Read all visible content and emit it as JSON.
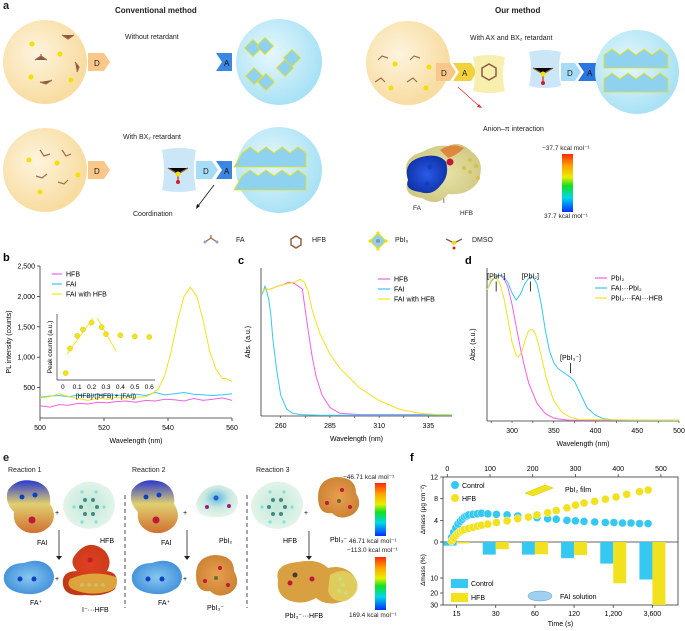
{
  "panel_a": {
    "label": "a",
    "conventional_title": "Conventional method",
    "our_title": "Our method",
    "without_retardant": "Without retardant",
    "with_bx2": "With BX₂ retardant",
    "with_ax_bx2": "With AX and BX₂ retardant",
    "coordination": "Coordination",
    "anion_pi": "Anion–π interaction",
    "donor": "D",
    "acceptor": "A",
    "esp_labels": {
      "fa": "FA",
      "i": "I",
      "hfb": "HFB"
    },
    "colorbar": {
      "top": "−37.7 kcal mol⁻¹",
      "bottom": "37.7 kcal mol⁻¹"
    },
    "legend": [
      {
        "icon": "fa-molecule-icon",
        "label": "FA"
      },
      {
        "icon": "hfb-molecule-icon",
        "label": "HFB"
      },
      {
        "icon": "pbi6-octahedron-icon",
        "label": "PbI₆"
      },
      {
        "icon": "dmso-molecule-icon",
        "label": "DMSO"
      }
    ],
    "colors": {
      "precursor_sphere": "#fbe3b0",
      "perovskite_sphere": "#bfe9f7",
      "donor": "#f9c27a",
      "acceptor_blue": "#3a86e0",
      "acceptor_yellow": "#f2d23c"
    }
  },
  "panel_e": {
    "label": "e",
    "reactions": [
      {
        "title": "Reaction 1",
        "reactant1": "FAI",
        "reactant2": "HFB",
        "product1": "FA⁺",
        "product2": "I⁻···HFB"
      },
      {
        "title": "Reaction 2",
        "reactant1": "FAI",
        "reactant2": "PbI₂",
        "product1": "FA⁺",
        "product2": "PbI₃⁻"
      },
      {
        "title": "Reaction 3",
        "reactant1": "HFB",
        "reactant2": "PbI₃⁻",
        "product1": "PbI₃⁻···HFB"
      }
    ],
    "plus": "+",
    "colorbar1": {
      "top": "−46.71 kcal mol⁻¹",
      "bottom": "46.71 kcal mol⁻¹"
    },
    "colorbar2": {
      "top": "−113.0 kcal mol⁻¹",
      "bottom": "169.4 kcal mol⁻¹"
    }
  },
  "chart_data": [
    {
      "id": "b",
      "type": "line",
      "label": "b",
      "xlabel": "Wavelength (nm)",
      "ylabel": "PL intensity (counts)",
      "xlim": [
        500,
        560
      ],
      "ylim": [
        0,
        2500
      ],
      "xticks": [
        500,
        520,
        540,
        560
      ],
      "yticks": [
        500,
        1000,
        1500,
        2000,
        2500
      ],
      "ytick_labels": [
        "500",
        "1,000",
        "1,500",
        "2,000",
        "2,500"
      ],
      "legend_position": "top-left",
      "series": [
        {
          "name": "HFB",
          "color": "#f062e6",
          "x": [
            500,
            503,
            506,
            509,
            512,
            515,
            518,
            521,
            524,
            527,
            530,
            533,
            536,
            539,
            542,
            545,
            548,
            551,
            554,
            557,
            560
          ],
          "y": [
            200,
            180,
            220,
            210,
            240,
            230,
            260,
            250,
            270,
            280,
            260,
            290,
            280,
            310,
            300,
            280,
            320,
            290,
            310,
            330,
            290
          ]
        },
        {
          "name": "FAI",
          "color": "#35c8f0",
          "x": [
            500,
            503,
            506,
            509,
            512,
            515,
            518,
            521,
            524,
            527,
            530,
            533,
            536,
            539,
            542,
            545,
            548,
            551,
            554,
            557,
            560
          ],
          "y": [
            340,
            360,
            370,
            350,
            380,
            360,
            390,
            370,
            380,
            360,
            390,
            370,
            420,
            380,
            400,
            420,
            390,
            380,
            370,
            380,
            400
          ]
        },
        {
          "name": "FAI with HFB",
          "color": "#f2e21e",
          "x": [
            500,
            503,
            506,
            509,
            512,
            515,
            518,
            521,
            524,
            527,
            530,
            533,
            535,
            537,
            539,
            541,
            543,
            545,
            547,
            549,
            551,
            553,
            555,
            557,
            558,
            560
          ],
          "y": [
            330,
            350,
            400,
            350,
            320,
            290,
            330,
            310,
            340,
            320,
            340,
            350,
            400,
            480,
            700,
            1100,
            1600,
            2000,
            2150,
            2000,
            1600,
            1100,
            800,
            650,
            650,
            600
          ]
        }
      ],
      "inset": {
        "type": "scatter",
        "xlabel": "[HFB]/([HFB] + [FAI])",
        "ylabel": "Peak counts (a.u.)",
        "xlim": [
          0,
          0.6
        ],
        "xticks": [
          0,
          0.1,
          0.2,
          0.3,
          0.4,
          0.5,
          0.6
        ],
        "x": [
          0.02,
          0.05,
          0.1,
          0.14,
          0.2,
          0.27,
          0.3,
          0.4,
          0.5,
          0.6
        ],
        "y": [
          0.12,
          0.55,
          0.77,
          0.88,
          1.0,
          0.92,
          0.8,
          0.78,
          0.76,
          0.75
        ],
        "fit_lines": [
          {
            "x": [
              0.03,
              0.21
            ],
            "y": [
              0.45,
              1.08
            ]
          },
          {
            "x": [
              0.24,
              0.37
            ],
            "y": [
              1.08,
              0.5
            ]
          }
        ],
        "color": "#f2e21e"
      }
    },
    {
      "id": "c",
      "type": "line",
      "label": "c",
      "xlabel": "Wavelength (nm)",
      "ylabel": "Abs. (a.u.)",
      "xlim": [
        250,
        347
      ],
      "ylim": [
        0,
        1.05
      ],
      "xticks": [
        260,
        285,
        310,
        335
      ],
      "legend_position": "top-right",
      "series": [
        {
          "name": "HFB",
          "color": "#f062e6",
          "x": [
            250,
            252,
            255,
            258,
            261,
            264,
            267,
            269,
            271,
            272,
            274,
            276,
            278,
            281,
            285,
            290,
            300,
            347
          ],
          "y": [
            0.86,
            0.9,
            0.9,
            0.92,
            0.93,
            0.95,
            0.94,
            0.92,
            0.9,
            0.8,
            0.6,
            0.42,
            0.28,
            0.15,
            0.06,
            0.02,
            0.01,
            0.01
          ]
        },
        {
          "name": "FAI",
          "color": "#35c8f0",
          "x": [
            250,
            251,
            252,
            253,
            254,
            255,
            256,
            258,
            260,
            263,
            266,
            270,
            280,
            347
          ],
          "y": [
            0.85,
            0.88,
            0.92,
            0.88,
            0.82,
            0.72,
            0.55,
            0.32,
            0.15,
            0.05,
            0.02,
            0.01,
            0.005,
            0.005
          ]
        },
        {
          "name": "FAI with HFB",
          "color": "#f2e21e",
          "x": [
            250,
            252,
            255,
            258,
            261,
            264,
            267,
            270,
            272,
            274,
            276,
            280,
            285,
            290,
            300,
            310,
            320,
            330,
            340,
            347
          ],
          "y": [
            0.87,
            0.9,
            0.9,
            0.92,
            0.93,
            0.94,
            0.95,
            0.97,
            0.95,
            0.88,
            0.75,
            0.58,
            0.44,
            0.34,
            0.2,
            0.11,
            0.05,
            0.02,
            0.01,
            0.01
          ]
        }
      ]
    },
    {
      "id": "d",
      "type": "line",
      "label": "d",
      "xlabel": "Wavelength (nm)",
      "ylabel": "Abs. (a.u.)",
      "xlim": [
        270,
        500
      ],
      "ylim": [
        0,
        1.05
      ],
      "xticks": [
        300,
        350,
        400,
        450,
        500
      ],
      "legend_position": "top-right",
      "annotations": [
        {
          "text": "[PbI⁺]",
          "x": 281,
          "y": 0.93
        },
        {
          "text": "[PbI₂]",
          "x": 322,
          "y": 0.93
        },
        {
          "text": "[PbI₃⁻]",
          "x": 370,
          "y": 0.37
        }
      ],
      "series": [
        {
          "name": "PbI₂",
          "color": "#f062e6",
          "x": [
            270,
            275,
            280,
            285,
            290,
            295,
            300,
            305,
            310,
            315,
            320,
            330,
            340,
            350,
            360,
            370,
            500
          ],
          "y": [
            0.9,
            0.96,
            0.99,
            1.0,
            0.98,
            0.92,
            0.8,
            0.65,
            0.5,
            0.37,
            0.26,
            0.12,
            0.05,
            0.02,
            0.01,
            0.005,
            0.005
          ]
        },
        {
          "name": "FAI···PbI₂",
          "color": "#35c8f0",
          "x": [
            270,
            275,
            280,
            285,
            290,
            295,
            300,
            305,
            310,
            315,
            320,
            325,
            330,
            335,
            340,
            345,
            350,
            355,
            360,
            365,
            370,
            375,
            380,
            385,
            390,
            400,
            410,
            420,
            440,
            500
          ],
          "y": [
            0.9,
            0.96,
            0.99,
            1.0,
            0.99,
            0.95,
            0.88,
            0.83,
            0.87,
            0.94,
            0.98,
            0.99,
            0.94,
            0.8,
            0.62,
            0.48,
            0.4,
            0.36,
            0.34,
            0.32,
            0.3,
            0.27,
            0.21,
            0.15,
            0.09,
            0.04,
            0.015,
            0.008,
            0.004,
            0.003
          ]
        },
        {
          "name": "PbI₂···FAI···HFB",
          "color": "#f2e21e",
          "x": [
            270,
            275,
            280,
            285,
            290,
            295,
            300,
            305,
            308,
            312,
            316,
            320,
            324,
            328,
            332,
            336,
            340,
            345,
            350,
            360,
            370,
            380,
            500
          ],
          "y": [
            0.9,
            0.97,
            0.99,
            0.95,
            0.85,
            0.7,
            0.54,
            0.45,
            0.44,
            0.48,
            0.56,
            0.62,
            0.63,
            0.6,
            0.52,
            0.42,
            0.32,
            0.22,
            0.14,
            0.06,
            0.025,
            0.01,
            0.005
          ]
        }
      ]
    },
    {
      "id": "f",
      "type": "scatter+bar",
      "label": "f",
      "top": {
        "xlabel_top_ticks": [
          0,
          100,
          200,
          300,
          400,
          500
        ],
        "xlim": [
          -10,
          540
        ],
        "ylabel": "Δmass (μg cm⁻²)",
        "ylim": [
          0,
          12
        ],
        "yticks": [
          0,
          4,
          8,
          12
        ],
        "annotation": "PbI₂ film",
        "series": [
          {
            "name": "Control",
            "color": "#35c8f0",
            "x": [
              10,
              15,
              20,
              25,
              30,
              35,
              40,
              45,
              50,
              60,
              70,
              80,
              95,
              115,
              140,
              165,
              190,
              210,
              235,
              255,
              280,
              300,
              320,
              345,
              370,
              390,
              410,
              430,
              450,
              470
            ],
            "y": [
              0.8,
              1.8,
              2.6,
              3.3,
              3.8,
              4.2,
              4.6,
              4.8,
              5.0,
              5.1,
              5.2,
              5.3,
              5.2,
              5.1,
              5.0,
              4.8,
              4.6,
              4.5,
              4.3,
              4.2,
              4.0,
              3.9,
              3.8,
              3.7,
              3.6,
              3.6,
              3.5,
              3.5,
              3.4,
              3.4
            ]
          },
          {
            "name": "HFB",
            "color": "#f2e21e",
            "x": [
              10,
              15,
              20,
              25,
              30,
              35,
              40,
              50,
              60,
              70,
              80,
              95,
              115,
              140,
              165,
              190,
              210,
              235,
              255,
              280,
              300,
              320,
              345,
              370,
              395,
              420,
              450,
              470
            ],
            "y": [
              0.2,
              0.7,
              1.2,
              1.6,
              1.9,
              2.1,
              2.3,
              2.5,
              2.7,
              2.9,
              3.1,
              3.3,
              3.6,
              3.9,
              4.3,
              4.6,
              5.0,
              5.4,
              5.8,
              6.3,
              6.8,
              7.2,
              7.5,
              7.9,
              8.3,
              8.8,
              9.3,
              9.6
            ]
          }
        ]
      },
      "bottom": {
        "xlabel": "Time (s)",
        "categories": [
          "15",
          "30",
          "60",
          "120",
          "1,200",
          "3,600"
        ],
        "ylabel": "Δmass (%)",
        "ytick_labels": [
          "0",
          "10",
          "20",
          "30"
        ],
        "annotation": "FAI solution",
        "series": [
          {
            "name": "Control",
            "color": "#35c8f0",
            "values": [
              1.0,
              3.5,
              3.5,
              4.5,
              6.0,
              11.0
            ]
          },
          {
            "name": "HFB",
            "color": "#f2e21e",
            "values": [
              0.4,
              2.0,
              3.4,
              3.6,
              13.5,
              30.0
            ]
          }
        ]
      }
    }
  ]
}
